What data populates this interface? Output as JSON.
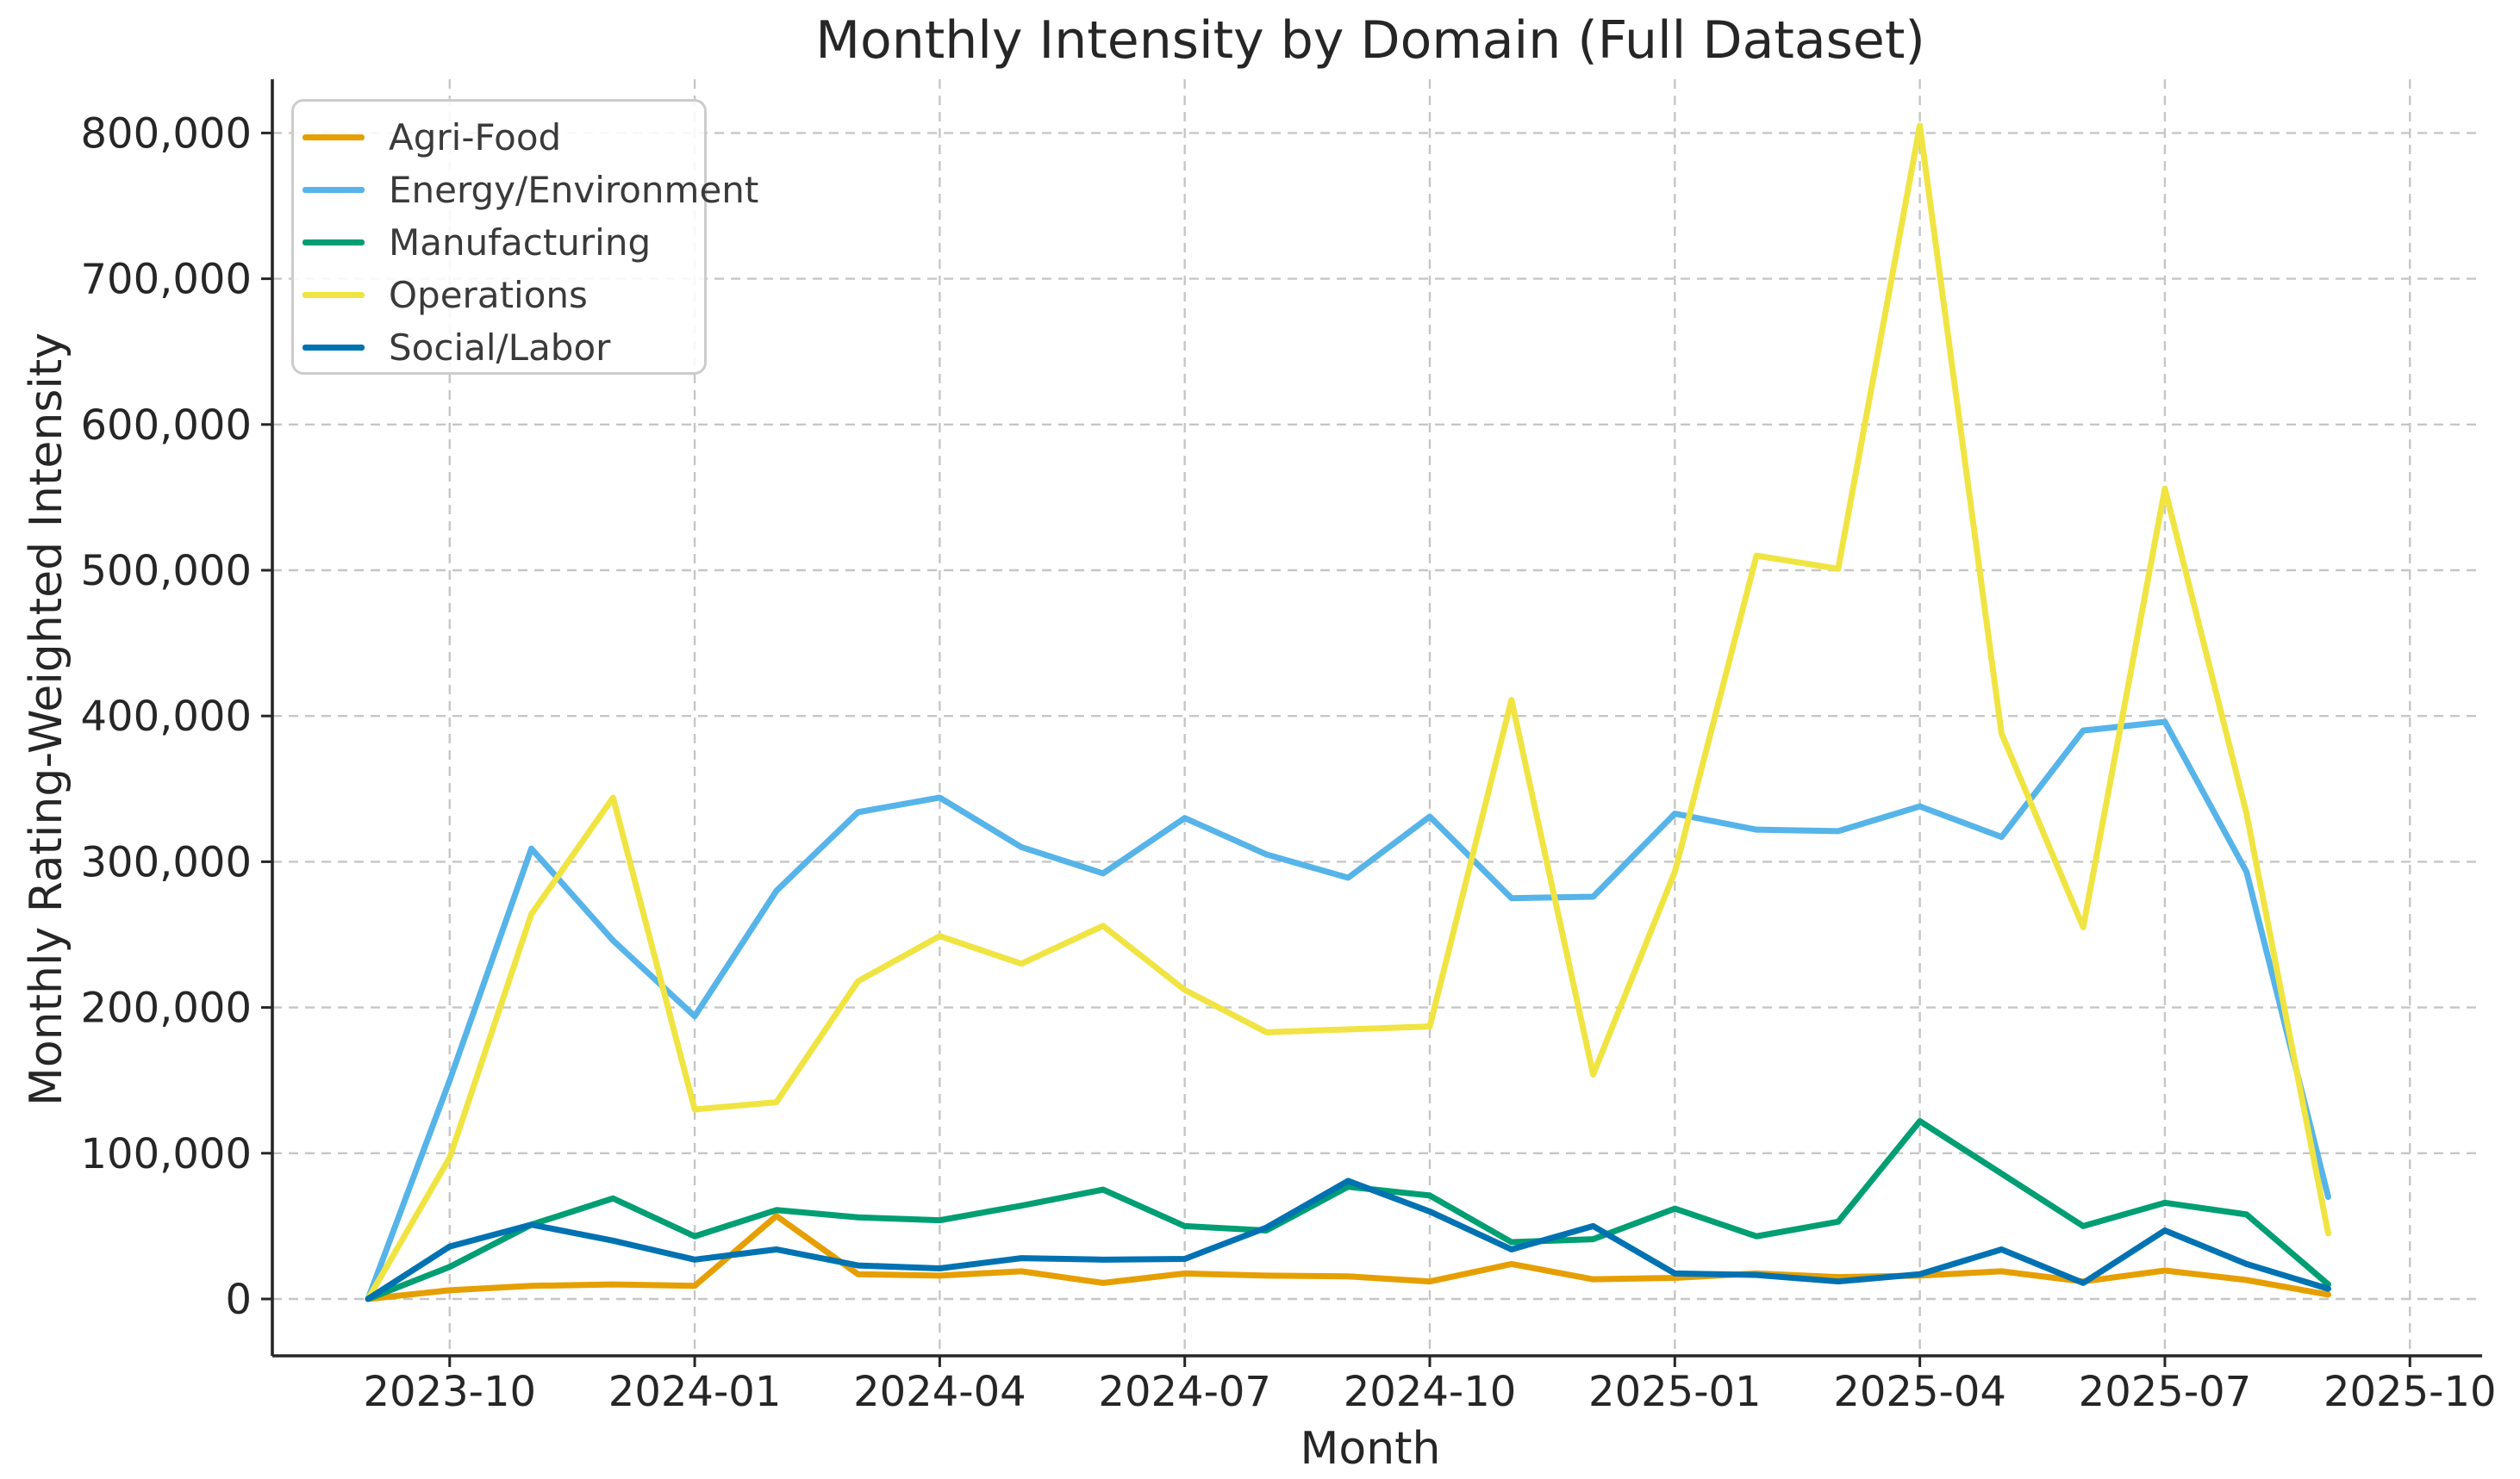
{
  "chart_data": {
    "type": "line",
    "title": "Monthly Intensity by Domain (Full Dataset)",
    "xlabel": "Month",
    "ylabel": "Monthly Rating-Weighted Intensity",
    "grid": true,
    "legend_position": "upper left",
    "x": [
      "2023-09",
      "2023-10",
      "2023-11",
      "2023-12",
      "2024-01",
      "2024-02",
      "2024-03",
      "2024-04",
      "2024-05",
      "2024-06",
      "2024-07",
      "2024-08",
      "2024-09",
      "2024-10",
      "2024-11",
      "2024-12",
      "2025-01",
      "2025-02",
      "2025-03",
      "2025-04",
      "2025-05",
      "2025-06",
      "2025-07",
      "2025-08",
      "2025-09"
    ],
    "x_tick_labels": [
      "2023-10",
      "2024-01",
      "2024-04",
      "2024-07",
      "2024-10",
      "2025-01",
      "2025-04",
      "2025-07",
      "2025-10"
    ],
    "y_ticks": [
      0,
      100000,
      200000,
      300000,
      400000,
      500000,
      600000,
      700000,
      800000
    ],
    "y_tick_labels": [
      "0",
      "100,000",
      "200,000",
      "300,000",
      "400,000",
      "500,000",
      "600,000",
      "700,000",
      "800,000"
    ],
    "ylim": [
      -40000,
      840000
    ],
    "series": [
      {
        "name": "Agri-Food",
        "color": "#E69F00",
        "values": [
          0,
          6000,
          9000,
          10000,
          9000,
          57000,
          17000,
          16000,
          19000,
          11000,
          17500,
          16000,
          15500,
          12000,
          24000,
          13500,
          14500,
          17500,
          15000,
          16000,
          19000,
          12000,
          19500,
          13000,
          3000
        ]
      },
      {
        "name": "Energy/Environment",
        "color": "#56B4E9",
        "values": [
          0,
          150000,
          309000,
          246000,
          194000,
          280000,
          334000,
          344000,
          310000,
          292000,
          330000,
          305000,
          289000,
          331000,
          275000,
          276000,
          333000,
          322000,
          321000,
          338000,
          317000,
          390000,
          396000,
          293000,
          70000
        ]
      },
      {
        "name": "Manufacturing",
        "color": "#009E73",
        "values": [
          0,
          22000,
          51000,
          69000,
          43000,
          61000,
          56000,
          54000,
          64000,
          75000,
          50000,
          47000,
          77000,
          71000,
          39000,
          41000,
          62000,
          43000,
          53000,
          122000,
          86000,
          50000,
          66000,
          58000,
          10000
        ]
      },
      {
        "name": "Operations",
        "color": "#F0E442",
        "values": [
          0,
          97000,
          264000,
          344000,
          130000,
          135000,
          218000,
          249000,
          230000,
          256000,
          212000,
          183000,
          185000,
          187000,
          411000,
          154000,
          293000,
          510000,
          501000,
          805000,
          388000,
          255000,
          556000,
          333000,
          45000
        ]
      },
      {
        "name": "Social/Labor",
        "color": "#0072B2",
        "values": [
          0,
          36000,
          51000,
          40000,
          27000,
          34000,
          23000,
          21000,
          28000,
          27000,
          27500,
          49000,
          81000,
          60000,
          34000,
          50000,
          17500,
          16500,
          12000,
          17000,
          34000,
          11000,
          47000,
          24000,
          7000
        ]
      }
    ]
  }
}
